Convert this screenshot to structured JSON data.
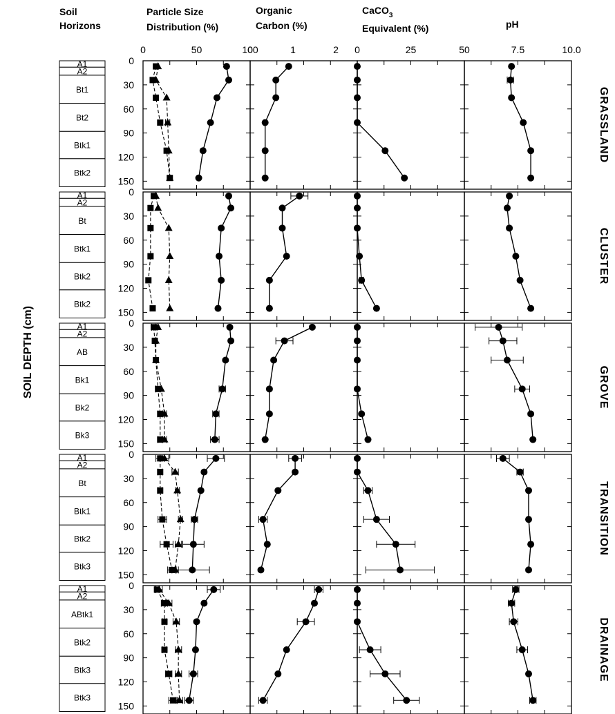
{
  "headers": {
    "horizons": [
      "Soil",
      "Horizons"
    ],
    "psd": [
      "Particle Size",
      "Distribution (%)"
    ],
    "oc": [
      "Organic",
      "Carbon (%)"
    ],
    "caco3_line1": "CaCO",
    "caco3_sub": "3",
    "caco3_line2": "Equivalent (%)",
    "ph": "pH"
  },
  "y_axis_label": "SOIL DEPTH (cm)",
  "chart_data": {
    "type": "scatter",
    "y_axis": {
      "label": "SOIL DEPTH (cm)",
      "ylim": [
        0,
        160
      ],
      "inverted": true,
      "ticks": [
        0,
        30,
        60,
        90,
        120,
        150
      ]
    },
    "panels_x": [
      {
        "id": "psd",
        "label": "Particle Size Distribution (%)",
        "xlim": [
          0,
          100
        ],
        "ticks": [
          "0",
          "50",
          "100"
        ],
        "tick_values": [
          0,
          50,
          100
        ]
      },
      {
        "id": "oc",
        "label": "Organic Carbon (%)",
        "xlim": [
          0,
          2.5
        ],
        "ticks": [
          "0",
          "1",
          "2"
        ],
        "tick_values": [
          0,
          1,
          2
        ]
      },
      {
        "id": "caco3",
        "label": "CaCO3 Equivalent (%)",
        "xlim": [
          0,
          50
        ],
        "ticks": [
          "0",
          "25",
          "50"
        ],
        "tick_values": [
          0,
          25,
          50
        ]
      },
      {
        "id": "ph",
        "label": "pH",
        "xlim": [
          5,
          10
        ],
        "ticks": [
          "7.5",
          "10.0"
        ],
        "tick_values": [
          7.5,
          10
        ]
      }
    ],
    "sites": [
      {
        "name": "GRASSLAND",
        "horizons": [
          {
            "label": "A1",
            "top": 0,
            "bottom": 8
          },
          {
            "label": "A2",
            "top": 8,
            "bottom": 18
          },
          {
            "label": "Bt1",
            "top": 18,
            "bottom": 53
          },
          {
            "label": "Bt2",
            "top": 53,
            "bottom": 88
          },
          {
            "label": "Btk1",
            "top": 88,
            "bottom": 122
          },
          {
            "label": "Btk2",
            "top": 122,
            "bottom": 157
          }
        ],
        "depths": [
          7,
          24,
          46,
          77,
          112,
          146
        ],
        "sand": [
          78,
          80,
          69,
          63,
          56,
          52
        ],
        "sand_err": [
          0,
          0,
          0,
          0,
          0,
          0
        ],
        "silt": [
          14,
          12,
          22,
          23,
          24,
          25
        ],
        "silt_err": [
          0,
          0,
          0,
          2,
          0,
          0
        ],
        "clay": [
          12,
          9,
          12,
          16,
          22,
          25
        ],
        "clay_err": [
          0,
          0,
          0,
          0,
          0,
          0
        ],
        "organic_carbon": [
          0.9,
          0.6,
          0.6,
          0.35,
          0.35,
          0.35
        ],
        "organic_carbon_err": [
          0,
          0,
          0,
          0,
          0,
          0
        ],
        "caco3": [
          0,
          0,
          0,
          0,
          13,
          22
        ],
        "caco3_err": [
          0,
          0,
          0,
          0,
          0,
          0
        ],
        "ph": [
          7.2,
          7.15,
          7.2,
          7.75,
          8.1,
          8.1
        ],
        "ph_err": [
          0,
          0.15,
          0,
          0,
          0,
          0
        ]
      },
      {
        "name": "CLUSTER",
        "horizons": [
          {
            "label": "A1",
            "top": 0,
            "bottom": 8
          },
          {
            "label": "A2",
            "top": 8,
            "bottom": 18
          },
          {
            "label": "Bt",
            "top": 18,
            "bottom": 53
          },
          {
            "label": "Btk1",
            "top": 53,
            "bottom": 88
          },
          {
            "label": "Btk2",
            "top": 88,
            "bottom": 122
          },
          {
            "label": "Btk2",
            "top": 122,
            "bottom": 157
          }
        ],
        "depths": [
          5,
          20,
          45,
          80,
          110,
          145
        ],
        "sand": [
          80,
          82,
          73,
          71,
          73,
          70
        ],
        "sand_err": [
          0,
          0,
          0,
          0,
          0,
          0
        ],
        "silt": [
          12,
          14,
          24,
          25,
          24,
          25
        ],
        "silt_err": [
          0,
          0,
          0,
          0,
          0,
          0
        ],
        "clay": [
          10,
          7,
          7,
          7,
          5,
          9
        ],
        "clay_err": [
          0,
          0,
          0,
          0,
          0,
          0
        ],
        "organic_carbon": [
          1.15,
          0.75,
          0.75,
          0.85,
          0.45,
          0.45
        ],
        "organic_carbon_err": [
          0.2,
          0,
          0,
          0,
          0,
          0
        ],
        "caco3": [
          0,
          0,
          0,
          1,
          2,
          9
        ],
        "caco3_err": [
          0,
          0,
          0,
          0,
          1,
          0
        ],
        "ph": [
          7.1,
          7.0,
          7.1,
          7.4,
          7.6,
          8.1
        ],
        "ph_err": [
          0,
          0,
          0,
          0,
          0,
          0
        ]
      },
      {
        "name": "GROVE",
        "horizons": [
          {
            "label": "A1",
            "top": 0,
            "bottom": 8
          },
          {
            "label": "A2",
            "top": 8,
            "bottom": 18
          },
          {
            "label": "AB",
            "top": 18,
            "bottom": 53
          },
          {
            "label": "Bk1",
            "top": 53,
            "bottom": 88
          },
          {
            "label": "Bk2",
            "top": 88,
            "bottom": 122
          },
          {
            "label": "Bk3",
            "top": 122,
            "bottom": 157
          }
        ],
        "depths": [
          5,
          22,
          46,
          82,
          113,
          145
        ],
        "sand": [
          81,
          82,
          77,
          74,
          68,
          67
        ],
        "sand_err": [
          0,
          0,
          0,
          3,
          3,
          4
        ],
        "silt": [
          14,
          12,
          12,
          17,
          20,
          20
        ],
        "silt_err": [
          0,
          0,
          0,
          0,
          2,
          2
        ],
        "clay": [
          10,
          11,
          12,
          14,
          16,
          16
        ],
        "clay_err": [
          2,
          0,
          0,
          2,
          2,
          2
        ],
        "organic_carbon": [
          1.45,
          0.8,
          0.55,
          0.45,
          0.45,
          0.35
        ],
        "organic_carbon_err": [
          0,
          0.2,
          0,
          0,
          0,
          0
        ],
        "caco3": [
          0,
          0,
          0,
          0,
          2,
          5
        ],
        "caco3_err": [
          0,
          0,
          0,
          0,
          0,
          0
        ],
        "ph": [
          6.6,
          6.8,
          7.0,
          7.7,
          8.1,
          8.2
        ],
        "ph_err": [
          1.1,
          0.65,
          0.75,
          0.35,
          0,
          0
        ]
      },
      {
        "name": "TRANSITION",
        "horizons": [
          {
            "label": "A1",
            "top": 0,
            "bottom": 8
          },
          {
            "label": "A2",
            "top": 8,
            "bottom": 18
          },
          {
            "label": "Bt",
            "top": 18,
            "bottom": 53
          },
          {
            "label": "Btk1",
            "top": 53,
            "bottom": 88
          },
          {
            "label": "Btk2",
            "top": 88,
            "bottom": 122
          },
          {
            "label": "Btk3",
            "top": 122,
            "bottom": 157
          }
        ],
        "depths": [
          5,
          22,
          45,
          81,
          112,
          144
        ],
        "sand": [
          68,
          57,
          54,
          48,
          47,
          46
        ],
        "sand_err": [
          8,
          0,
          0,
          3,
          10,
          16
        ],
        "silt": [
          20,
          30,
          32,
          35,
          33,
          30
        ],
        "silt_err": [
          4,
          3,
          2,
          2,
          3,
          3
        ],
        "clay": [
          16,
          16,
          16,
          18,
          22,
          27
        ],
        "clay_err": [
          4,
          2,
          2,
          4,
          6,
          4
        ],
        "organic_carbon": [
          1.05,
          1.05,
          0.65,
          0.3,
          0.4,
          0.25
        ],
        "organic_carbon_err": [
          0.15,
          0,
          0,
          0.1,
          0,
          0
        ],
        "caco3": [
          0,
          0,
          5,
          9,
          18,
          20
        ],
        "caco3_err": [
          0,
          0,
          2,
          6,
          9,
          16
        ],
        "ph": [
          6.8,
          7.6,
          8.0,
          8.0,
          8.1,
          8.0
        ],
        "ph_err": [
          0.3,
          0.15,
          0,
          0,
          0,
          0
        ]
      },
      {
        "name": "DRAINAGE",
        "horizons": [
          {
            "label": "A1",
            "top": 0,
            "bottom": 8
          },
          {
            "label": "A2",
            "top": 8,
            "bottom": 18
          },
          {
            "label": "ABtk1",
            "top": 18,
            "bottom": 53
          },
          {
            "label": "Btk2",
            "top": 53,
            "bottom": 88
          },
          {
            "label": "Btk3",
            "top": 88,
            "bottom": 122
          },
          {
            "label": "Btk3",
            "top": 122,
            "bottom": 157
          }
        ],
        "depths": [
          5,
          22,
          45,
          80,
          110,
          143
        ],
        "sand": [
          66,
          57,
          50,
          49,
          47,
          43
        ],
        "sand_err": [
          6,
          0,
          0,
          0,
          4,
          4
        ],
        "silt": [
          15,
          24,
          31,
          33,
          33,
          34
        ],
        "silt_err": [
          3,
          3,
          3,
          3,
          3,
          3
        ],
        "clay": [
          13,
          20,
          20,
          20,
          24,
          28
        ],
        "clay_err": [
          2,
          3,
          2,
          2,
          3,
          4
        ],
        "organic_carbon": [
          1.6,
          1.5,
          1.3,
          0.85,
          0.65,
          0.3
        ],
        "organic_carbon_err": [
          0.1,
          0,
          0.2,
          0,
          0,
          0.1
        ],
        "caco3": [
          0,
          0,
          0,
          6,
          13,
          23
        ],
        "caco3_err": [
          0,
          0,
          0,
          5,
          7,
          6
        ],
        "ph": [
          7.4,
          7.2,
          7.3,
          7.7,
          8.0,
          8.2
        ],
        "ph_err": [
          0.15,
          0.15,
          0.2,
          0.25,
          0,
          0.15
        ]
      }
    ]
  }
}
